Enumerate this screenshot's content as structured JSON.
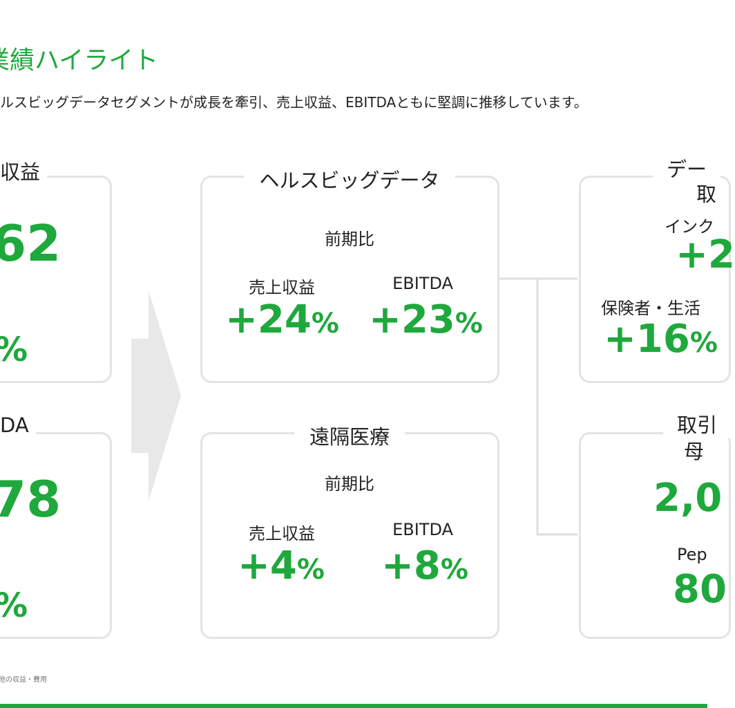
{
  "header": {
    "title": "業績ハイライト",
    "subtitle": "ルスビッグデータセグメントが成長を牽引、売上収益、EBITDAともに堅調に推移しています。"
  },
  "left_cards": [
    {
      "label": "収益",
      "value": "62",
      "change": "%"
    },
    {
      "label": "DA",
      "value": "78",
      "change": "%"
    }
  ],
  "segments": [
    {
      "title": "ヘルスビッグデータ",
      "note": "前期比",
      "metrics": [
        {
          "label": "売上収益",
          "value": "+24",
          "unit": "%"
        },
        {
          "label": "EBITDA",
          "value": "+23",
          "unit": "%"
        }
      ]
    },
    {
      "title": "遠隔医療",
      "note": "前期比",
      "metrics": [
        {
          "label": "売上収益",
          "value": "+4",
          "unit": "%"
        },
        {
          "label": "EBITDA",
          "value": "+8",
          "unit": "%"
        }
      ]
    }
  ],
  "right_cards": [
    {
      "title_lines": [
        "デー",
        "取"
      ],
      "items": [
        {
          "label": "インク",
          "value": "+2"
        },
        {
          "label": "保険者・生活",
          "value": "+16",
          "unit": "%"
        }
      ]
    },
    {
      "title_lines": [
        "取引",
        "母"
      ],
      "items": [
        {
          "value": "2,0"
        },
        {
          "label": "Pep",
          "value": "80"
        }
      ]
    }
  ],
  "footnote": "他の収益・費用"
}
